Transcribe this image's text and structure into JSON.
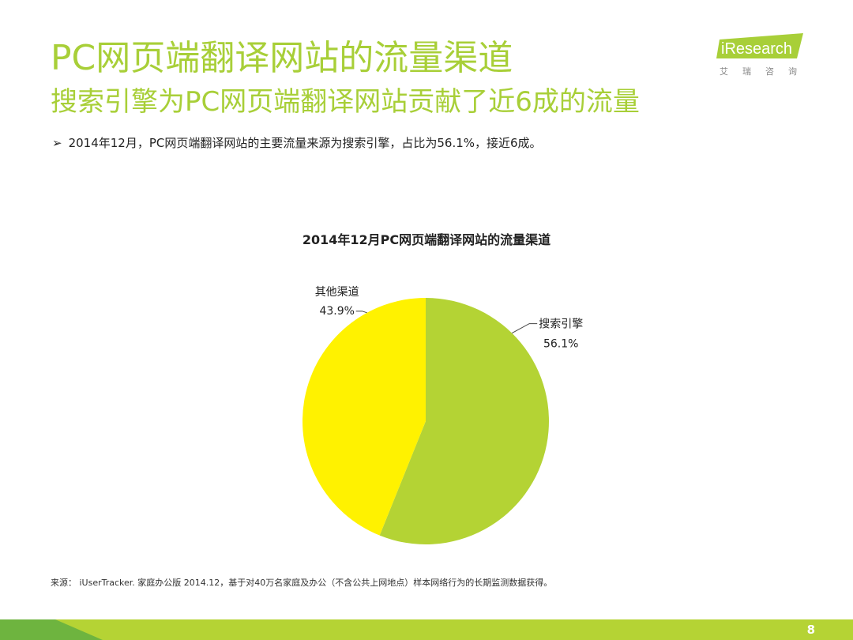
{
  "header": {
    "title": "PC网页端翻译网站的流量渠道",
    "subtitle": "搜索引擎为PC网页端翻译网站贡献了近6成的流量",
    "bullet_arrow": "➢",
    "bullet": "2014年12月，PC网页端翻译网站的主要流量来源为搜索引擎，占比为56.1%，接近6成。"
  },
  "logo": {
    "brand": "iResearch",
    "sub": "艾瑞咨询"
  },
  "chart_data": {
    "type": "pie",
    "title": "2014年12月PC网页端翻译网站的流量渠道",
    "slices": [
      {
        "label": "搜索引擎",
        "value": 56.1,
        "value_label": "56.1%",
        "color": "#b4d334"
      },
      {
        "label": "其他渠道",
        "value": 43.9,
        "value_label": "43.9%",
        "color": "#fff200"
      }
    ]
  },
  "footer": {
    "source": "来源： iUserTracker. 家庭办公版 2014.12，基于对40万名家庭及办公（不含公共上网地点）样本网络行为的长期监测数据获得。",
    "page_number": "8"
  },
  "colors": {
    "accent": "#a8cf38",
    "footer_bar": "#b5d334",
    "footer_bar_dark": "#6eb43f"
  }
}
